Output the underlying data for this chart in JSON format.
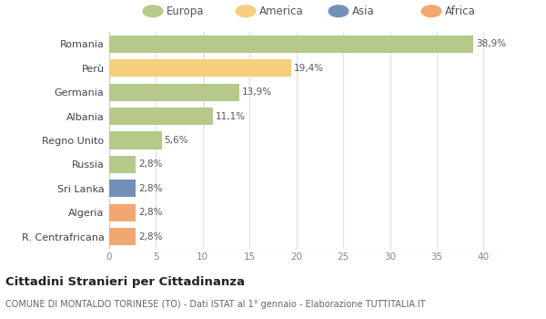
{
  "countries": [
    "Romania",
    "Perù",
    "Germania",
    "Albania",
    "Regno Unito",
    "Russia",
    "Sri Lanka",
    "Algeria",
    "R. Centrafricana"
  ],
  "values": [
    38.9,
    19.4,
    13.9,
    11.1,
    5.6,
    2.8,
    2.8,
    2.8,
    2.8
  ],
  "labels": [
    "38,9%",
    "19,4%",
    "13,9%",
    "11,1%",
    "5,6%",
    "2,8%",
    "2,8%",
    "2,8%",
    "2,8%"
  ],
  "colors": [
    "#b5c98a",
    "#f5ce7e",
    "#b5c98a",
    "#b5c98a",
    "#b5c98a",
    "#b5c98a",
    "#7090b8",
    "#f0a870",
    "#f0a870"
  ],
  "legend_labels": [
    "Europa",
    "America",
    "Asia",
    "Africa"
  ],
  "legend_colors": [
    "#b5c98a",
    "#f5ce7e",
    "#7090b8",
    "#f0a870"
  ],
  "title": "Cittadini Stranieri per Cittadinanza",
  "subtitle": "COMUNE DI MONTALDO TORINESE (TO) - Dati ISTAT al 1° gennaio - Elaborazione TUTTITALIA.IT",
  "xlim": [
    0,
    42
  ],
  "xticks": [
    0,
    5,
    10,
    15,
    20,
    25,
    30,
    35,
    40
  ],
  "background_color": "#ffffff",
  "plot_bg_color": "#ffffff",
  "grid_color": "#e0e0e0",
  "bar_height": 0.72
}
